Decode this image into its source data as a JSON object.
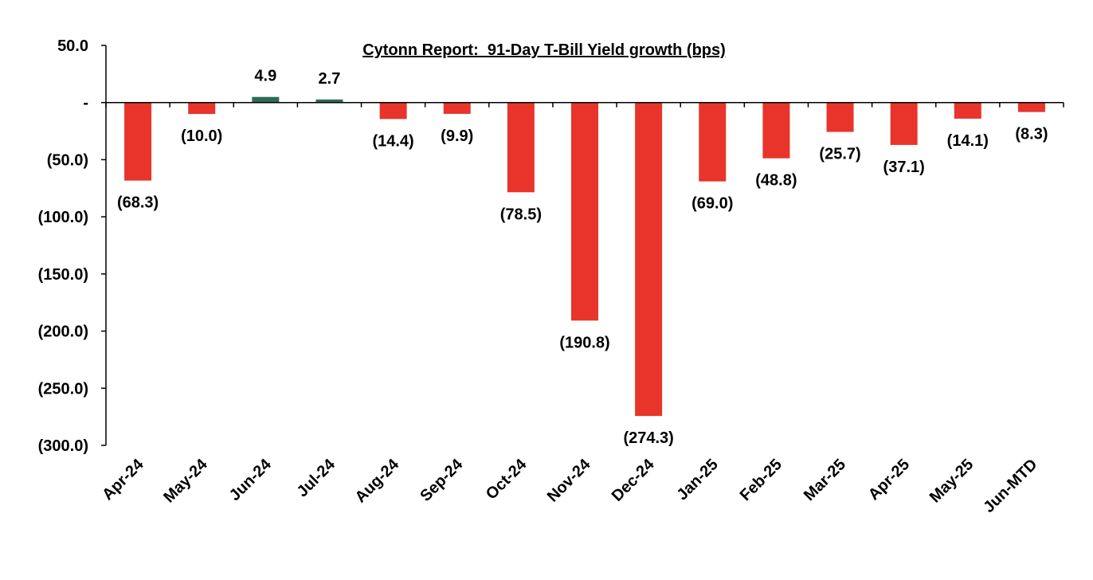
{
  "chart_data": {
    "type": "bar",
    "title": "Cytonn Report:  91-Day T-Bill Yield growth (bps)",
    "xlabel": "",
    "ylabel": "",
    "categories": [
      "Apr-24",
      "May-24",
      "Jun-24",
      "Jul-24",
      "Aug-24",
      "Sep-24",
      "Oct-24",
      "Nov-24",
      "Dec-24",
      "Jan-25",
      "Feb-25",
      "Mar-25",
      "Apr-25",
      "May-25",
      "Jun-MTD"
    ],
    "values": [
      -68.3,
      -10.0,
      4.9,
      2.7,
      -14.4,
      -9.9,
      -78.5,
      -190.8,
      -274.3,
      -69.0,
      -48.8,
      -25.7,
      -37.1,
      -14.1,
      -8.3
    ],
    "data_labels": [
      "(68.3)",
      "(10.0)",
      "4.9",
      "2.7",
      "(14.4)",
      "(9.9)",
      "(78.5)",
      "(190.8)",
      "(274.3)",
      "(69.0)",
      "(48.8)",
      "(25.7)",
      "(37.1)",
      "(14.1)",
      "(8.3)"
    ],
    "ylim": [
      -300,
      50
    ],
    "yticks": [
      50,
      0,
      -50,
      -100,
      -150,
      -200,
      -250,
      -300
    ],
    "ytick_labels": [
      "50.0",
      "-",
      "(50.0)",
      "(100.0)",
      "(150.0)",
      "(200.0)",
      "(250.0)",
      "(300.0)"
    ],
    "grid": false,
    "legend": "none",
    "colors": {
      "positive": "#2e6b57",
      "negative": "#e8342a",
      "axis": "#000000"
    }
  }
}
